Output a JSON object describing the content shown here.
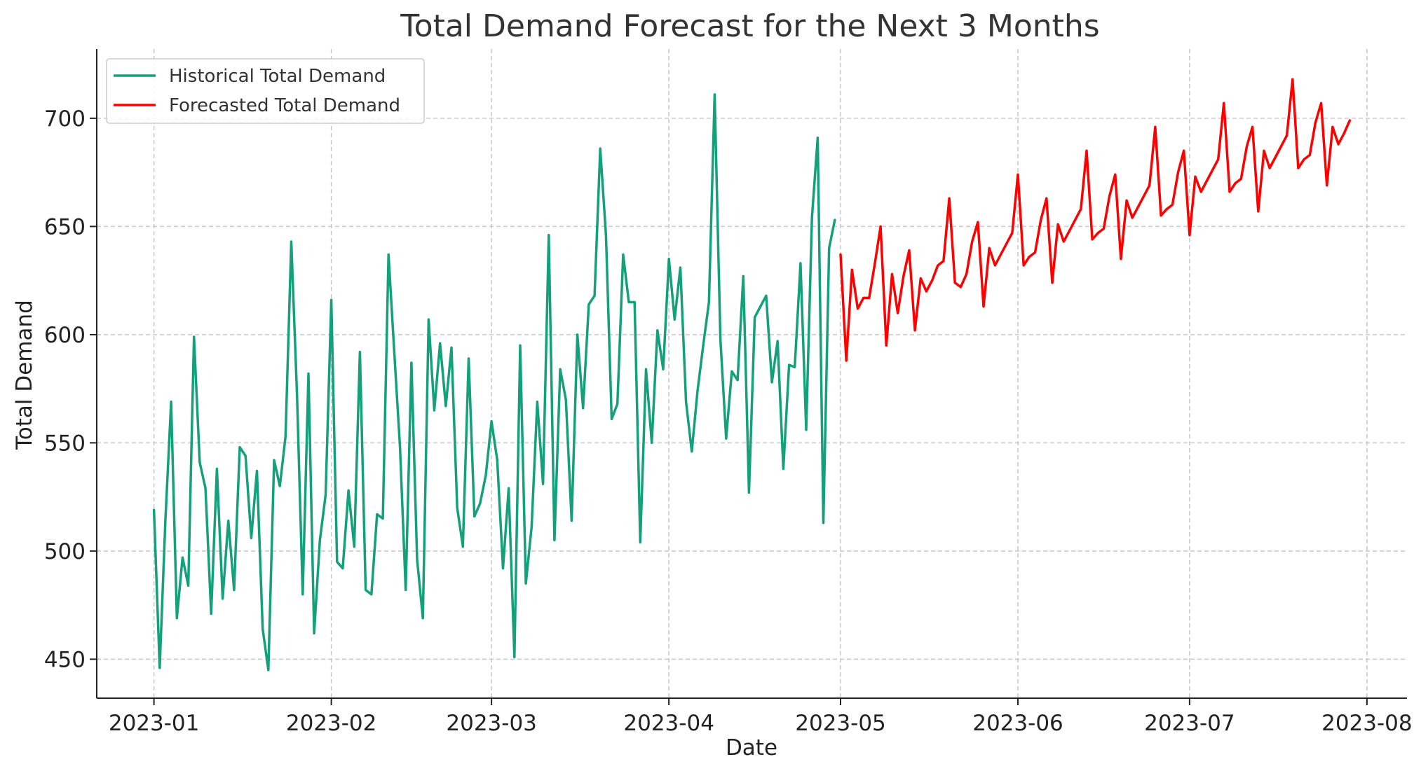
{
  "chart_data": {
    "type": "line",
    "title": "Total Demand Forecast for the Next 3 Months",
    "xlabel": "Date",
    "ylabel": "Total Demand",
    "x_range": [
      "2022-12-22",
      "2023-08-08"
    ],
    "ylim": [
      432,
      732
    ],
    "grid": true,
    "legend_position": "top-left",
    "x_ticks": [
      "2023-01-01",
      "2023-02-01",
      "2023-03-01",
      "2023-04-01",
      "2023-05-01",
      "2023-06-01",
      "2023-07-01",
      "2023-08-01"
    ],
    "x_tick_labels": [
      "2023-01",
      "2023-02",
      "2023-03",
      "2023-04",
      "2023-05",
      "2023-06",
      "2023-07",
      "2023-08"
    ],
    "y_ticks": [
      450,
      500,
      550,
      600,
      650,
      700
    ],
    "series": [
      {
        "name": "Historical Total Demand",
        "color": "#14a07a",
        "start_date": "2023-01-01",
        "values": [
          519,
          446,
          514,
          569,
          469,
          497,
          484,
          599,
          541,
          529,
          471,
          538,
          478,
          514,
          482,
          548,
          544,
          506,
          537,
          464,
          445,
          542,
          530,
          553,
          643,
          572,
          480,
          582,
          462,
          505,
          526,
          616,
          495,
          492,
          528,
          502,
          592,
          482,
          480,
          517,
          515,
          637,
          592,
          548,
          482,
          587,
          496,
          469,
          607,
          565,
          596,
          567,
          594,
          520,
          502,
          589,
          516,
          522,
          535,
          560,
          542,
          492,
          529,
          451,
          595,
          485,
          511,
          569,
          531,
          646,
          505,
          584,
          570,
          514,
          600,
          566,
          614,
          618,
          686,
          646,
          561,
          568,
          637,
          615,
          615,
          504,
          584,
          550,
          602,
          584,
          635,
          607,
          631,
          569,
          546,
          574,
          595,
          615,
          711,
          598,
          552,
          583,
          579,
          627,
          527,
          608,
          613,
          618,
          578,
          597,
          538,
          586,
          585,
          633,
          556,
          654,
          691,
          513,
          640,
          653
        ]
      },
      {
        "name": "Forecasted Total Demand",
        "color": "#ff0000",
        "start_date": "2023-05-01",
        "values": [
          637,
          588,
          630,
          612,
          617,
          617,
          633,
          650,
          595,
          628,
          610,
          627,
          639,
          602,
          626,
          620,
          625,
          632,
          634,
          663,
          624,
          622,
          628,
          643,
          652,
          613,
          640,
          632,
          637,
          642,
          647,
          674,
          632,
          636,
          638,
          653,
          663,
          624,
          651,
          643,
          648,
          653,
          658,
          685,
          644,
          647,
          649,
          664,
          674,
          635,
          662,
          654,
          659,
          664,
          669,
          696,
          655,
          658,
          660,
          675,
          685,
          646,
          673,
          666,
          671,
          676,
          681,
          707,
          666,
          670,
          672,
          687,
          696,
          657,
          685,
          677,
          682,
          687,
          692,
          718,
          677,
          681,
          683,
          698,
          707,
          669,
          696,
          688,
          693,
          699
        ]
      }
    ]
  }
}
